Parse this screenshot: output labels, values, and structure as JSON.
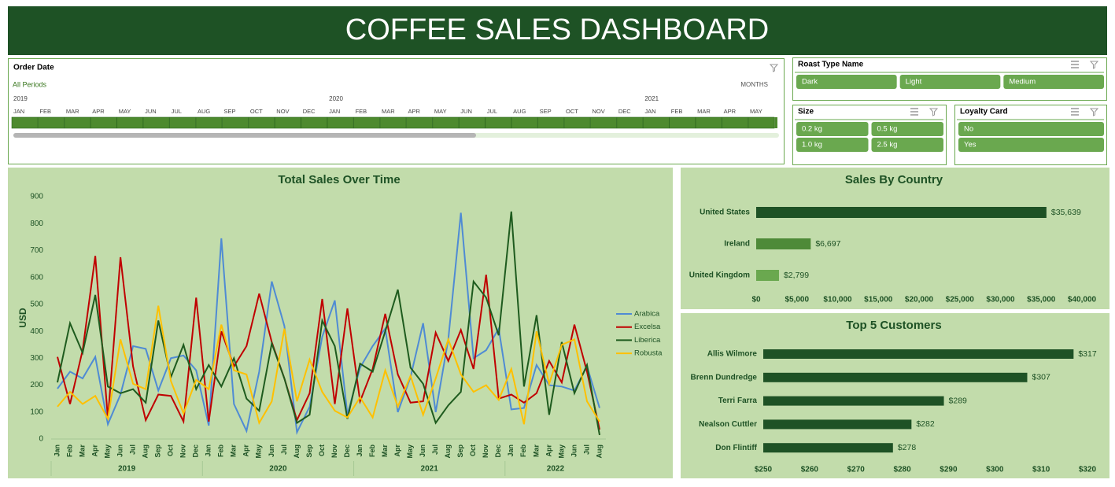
{
  "header": {
    "title": "COFFEE SALES DASHBOARD"
  },
  "timeline": {
    "title": "Order Date",
    "filter": "All Periods",
    "level": "MONTHS",
    "years": [
      "2019",
      "2020",
      "2021"
    ],
    "months": [
      "JAN",
      "FEB",
      "MAR",
      "APR",
      "MAY",
      "JUN",
      "JUL",
      "AUG",
      "SEP",
      "OCT",
      "NOV",
      "DEC",
      "JAN",
      "FEB",
      "MAR",
      "APR",
      "MAY",
      "JUN",
      "JUL",
      "AUG",
      "SEP",
      "OCT",
      "NOV",
      "DEC",
      "JAN",
      "FEB",
      "MAR",
      "APR",
      "MAY"
    ]
  },
  "slicers": [
    {
      "title": "Roast Type Name",
      "items": [
        "Dark",
        "Light",
        "Medium"
      ]
    },
    {
      "title": "Size",
      "items": [
        "0.2 kg",
        "0.5 kg",
        "1.0 kg",
        "2.5 kg"
      ]
    },
    {
      "title": "Loyalty Card",
      "items": [
        "No",
        "Yes"
      ]
    }
  ],
  "chart_data": [
    {
      "type": "line",
      "title": "Total Sales Over Time",
      "y_label": "USD",
      "categories": [
        "Jan",
        "Feb",
        "Mar",
        "Apr",
        "May",
        "Jun",
        "Jul",
        "Aug",
        "Sep",
        "Oct",
        "Nov",
        "Dec",
        "Jan",
        "Feb",
        "Mar",
        "Apr",
        "May",
        "Jun",
        "Jul",
        "Aug",
        "Sep",
        "Oct",
        "Nov",
        "Dec",
        "Jan",
        "Feb",
        "Mar",
        "Apr",
        "May",
        "Jun",
        "Jul",
        "Aug",
        "Sep",
        "Oct",
        "Nov",
        "Dec",
        "Jan",
        "Feb",
        "Mar",
        "Apr",
        "May",
        "Jun",
        "Jul",
        "Aug"
      ],
      "groups": [
        "2019",
        "2020",
        "2021",
        "2022"
      ],
      "ylim": [
        0,
        900
      ],
      "yticks": [
        0,
        100,
        200,
        300,
        400,
        500,
        600,
        700,
        800,
        900
      ],
      "series": [
        {
          "name": "Arabica",
          "color": "#4f8bd4",
          "values": [
            187,
            250,
            225,
            305,
            55,
            165,
            345,
            335,
            180,
            300,
            310,
            255,
            50,
            745,
            130,
            30,
            250,
            585,
            420,
            25,
            120,
            380,
            515,
            90,
            265,
            345,
            410,
            100,
            230,
            430,
            100,
            370,
            840,
            300,
            330,
            410,
            110,
            115,
            275,
            200,
            195,
            180,
            270,
            115
          ]
        },
        {
          "name": "Excelsa",
          "color": "#c00000",
          "values": [
            305,
            130,
            330,
            680,
            75,
            675,
            270,
            70,
            165,
            160,
            65,
            525,
            65,
            400,
            270,
            345,
            540,
            360,
            225,
            70,
            170,
            520,
            130,
            485,
            140,
            260,
            465,
            240,
            135,
            140,
            395,
            290,
            405,
            260,
            610,
            150,
            165,
            135,
            170,
            290,
            210,
            425,
            250,
            35
          ]
        },
        {
          "name": "Liberica",
          "color": "#1e5b1e",
          "values": [
            210,
            430,
            320,
            535,
            195,
            170,
            185,
            135,
            440,
            230,
            350,
            185,
            275,
            195,
            300,
            150,
            105,
            355,
            225,
            60,
            90,
            440,
            345,
            75,
            280,
            250,
            400,
            555,
            265,
            205,
            60,
            125,
            175,
            585,
            525,
            385,
            845,
            195,
            460,
            90,
            360,
            170,
            275,
            15
          ]
        },
        {
          "name": "Robusta",
          "color": "#ffc000",
          "values": [
            120,
            175,
            130,
            160,
            75,
            370,
            205,
            185,
            495,
            215,
            95,
            220,
            185,
            425,
            255,
            240,
            60,
            140,
            410,
            140,
            295,
            175,
            105,
            80,
            155,
            80,
            255,
            120,
            235,
            90,
            225,
            370,
            240,
            175,
            200,
            145,
            260,
            55,
            400,
            205,
            350,
            370,
            140,
            65
          ]
        }
      ]
    },
    {
      "type": "bar",
      "orientation": "horizontal",
      "title": "Sales By Country",
      "categories": [
        "United States",
        "Ireland",
        "United Kingdom"
      ],
      "values": [
        35639,
        6697,
        2799
      ],
      "value_labels": [
        "$35,639",
        "$6,697",
        "$2,799"
      ],
      "colors": [
        "#1e5225",
        "#4e8a38",
        "#6aa84f"
      ],
      "xlim": [
        0,
        40000
      ],
      "xticks": [
        {
          "value": 0,
          "label": "$0"
        },
        {
          "value": 5000,
          "label": "$5,000"
        },
        {
          "value": 10000,
          "label": "$10,000"
        },
        {
          "value": 15000,
          "label": "$15,000"
        },
        {
          "value": 20000,
          "label": "$20,000"
        },
        {
          "value": 25000,
          "label": "$25,000"
        },
        {
          "value": 30000,
          "label": "$30,000"
        },
        {
          "value": 35000,
          "label": "$35,000"
        },
        {
          "value": 40000,
          "label": "$40,000"
        }
      ]
    },
    {
      "type": "bar",
      "orientation": "horizontal",
      "title": "Top 5 Customers",
      "categories": [
        "Allis Wilmore",
        "Brenn Dundredge",
        "Terri Farra",
        "Nealson Cuttler",
        "Don Flintiff"
      ],
      "values": [
        317,
        307,
        289,
        282,
        278
      ],
      "value_labels": [
        "$317",
        "$307",
        "$289",
        "$282",
        "$278"
      ],
      "colors": [
        "#1e5225",
        "#1e5225",
        "#1e5225",
        "#1e5225",
        "#1e5225"
      ],
      "xlim": [
        250,
        320
      ],
      "xticks": [
        {
          "value": 250,
          "label": "$250"
        },
        {
          "value": 260,
          "label": "$260"
        },
        {
          "value": 270,
          "label": "$270"
        },
        {
          "value": 280,
          "label": "$280"
        },
        {
          "value": 290,
          "label": "$290"
        },
        {
          "value": 300,
          "label": "$300"
        },
        {
          "value": 310,
          "label": "$310"
        },
        {
          "value": 320,
          "label": "$320"
        }
      ]
    }
  ]
}
